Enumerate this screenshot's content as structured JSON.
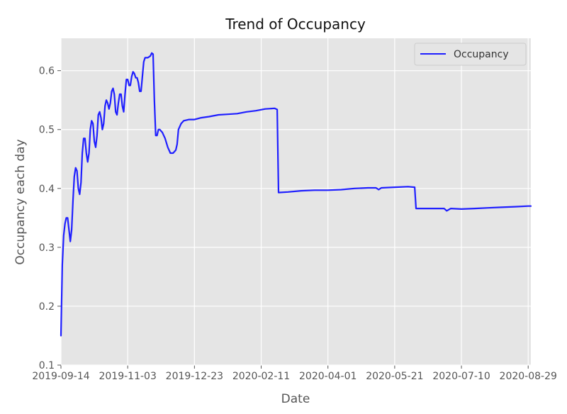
{
  "chart_data": {
    "type": "line",
    "title": "Trend of Occupancy",
    "xlabel": "Date",
    "ylabel": "Occupancy each day",
    "x_ticks": [
      "2019-09-14",
      "2019-11-03",
      "2019-12-23",
      "2020-02-11",
      "2020-04-01",
      "2020-05-21",
      "2020-07-10",
      "2020-08-29"
    ],
    "y_ticks": [
      "0.1",
      "0.2",
      "0.3",
      "0.4",
      "0.5",
      "0.6"
    ],
    "xlim": [
      "2019-09-14",
      "2020-08-31"
    ],
    "ylim": [
      0.1,
      0.655
    ],
    "grid": true,
    "legend_position": "upper right",
    "colors": {
      "background": "#e5e5e5",
      "grid": "#ffffff",
      "line": "#1f1fff"
    },
    "series": [
      {
        "name": "Occupancy",
        "points": [
          [
            "2019-09-14",
            0.15
          ],
          [
            "2019-09-15",
            0.27
          ],
          [
            "2019-09-16",
            0.32
          ],
          [
            "2019-09-17",
            0.34
          ],
          [
            "2019-09-18",
            0.35
          ],
          [
            "2019-09-19",
            0.35
          ],
          [
            "2019-09-20",
            0.33
          ],
          [
            "2019-09-21",
            0.31
          ],
          [
            "2019-09-22",
            0.33
          ],
          [
            "2019-09-23",
            0.38
          ],
          [
            "2019-09-24",
            0.42
          ],
          [
            "2019-09-25",
            0.435
          ],
          [
            "2019-09-26",
            0.43
          ],
          [
            "2019-09-27",
            0.4
          ],
          [
            "2019-09-28",
            0.39
          ],
          [
            "2019-09-29",
            0.41
          ],
          [
            "2019-09-30",
            0.46
          ],
          [
            "2019-10-01",
            0.485
          ],
          [
            "2019-10-02",
            0.485
          ],
          [
            "2019-10-03",
            0.46
          ],
          [
            "2019-10-04",
            0.445
          ],
          [
            "2019-10-05",
            0.46
          ],
          [
            "2019-10-06",
            0.5
          ],
          [
            "2019-10-07",
            0.515
          ],
          [
            "2019-10-08",
            0.51
          ],
          [
            "2019-10-09",
            0.48
          ],
          [
            "2019-10-10",
            0.47
          ],
          [
            "2019-10-11",
            0.49
          ],
          [
            "2019-10-12",
            0.525
          ],
          [
            "2019-10-13",
            0.53
          ],
          [
            "2019-10-14",
            0.52
          ],
          [
            "2019-10-15",
            0.5
          ],
          [
            "2019-10-16",
            0.51
          ],
          [
            "2019-10-17",
            0.54
          ],
          [
            "2019-10-18",
            0.55
          ],
          [
            "2019-10-19",
            0.545
          ],
          [
            "2019-10-20",
            0.535
          ],
          [
            "2019-10-21",
            0.545
          ],
          [
            "2019-10-22",
            0.565
          ],
          [
            "2019-10-23",
            0.57
          ],
          [
            "2019-10-24",
            0.56
          ],
          [
            "2019-10-25",
            0.53
          ],
          [
            "2019-10-26",
            0.525
          ],
          [
            "2019-10-27",
            0.545
          ],
          [
            "2019-10-28",
            0.56
          ],
          [
            "2019-10-29",
            0.56
          ],
          [
            "2019-10-30",
            0.54
          ],
          [
            "2019-10-31",
            0.53
          ],
          [
            "2019-11-01",
            0.56
          ],
          [
            "2019-11-02",
            0.585
          ],
          [
            "2019-11-03",
            0.585
          ],
          [
            "2019-11-04",
            0.575
          ],
          [
            "2019-11-05",
            0.575
          ],
          [
            "2019-11-06",
            0.59
          ],
          [
            "2019-11-07",
            0.598
          ],
          [
            "2019-11-08",
            0.595
          ],
          [
            "2019-11-09",
            0.588
          ],
          [
            "2019-11-10",
            0.588
          ],
          [
            "2019-11-11",
            0.58
          ],
          [
            "2019-11-12",
            0.565
          ],
          [
            "2019-11-13",
            0.565
          ],
          [
            "2019-11-14",
            0.59
          ],
          [
            "2019-11-15",
            0.615
          ],
          [
            "2019-11-16",
            0.622
          ],
          [
            "2019-11-17",
            0.622
          ],
          [
            "2019-11-18",
            0.622
          ],
          [
            "2019-11-20",
            0.625
          ],
          [
            "2019-11-21",
            0.63
          ],
          [
            "2019-11-22",
            0.628
          ],
          [
            "2019-11-23",
            0.55
          ],
          [
            "2019-11-24",
            0.49
          ],
          [
            "2019-11-25",
            0.49
          ],
          [
            "2019-11-26",
            0.5
          ],
          [
            "2019-11-27",
            0.5
          ],
          [
            "2019-11-29",
            0.495
          ],
          [
            "2019-12-01",
            0.485
          ],
          [
            "2019-12-03",
            0.47
          ],
          [
            "2019-12-05",
            0.46
          ],
          [
            "2019-12-07",
            0.46
          ],
          [
            "2019-12-09",
            0.465
          ],
          [
            "2019-12-10",
            0.475
          ],
          [
            "2019-12-11",
            0.5
          ],
          [
            "2019-12-13",
            0.51
          ],
          [
            "2019-12-15",
            0.515
          ],
          [
            "2019-12-19",
            0.517
          ],
          [
            "2019-12-23",
            0.517
          ],
          [
            "2019-12-28",
            0.52
          ],
          [
            "2020-01-03",
            0.522
          ],
          [
            "2020-01-10",
            0.525
          ],
          [
            "2020-01-17",
            0.526
          ],
          [
            "2020-01-24",
            0.527
          ],
          [
            "2020-01-31",
            0.53
          ],
          [
            "2020-02-07",
            0.532
          ],
          [
            "2020-02-14",
            0.535
          ],
          [
            "2020-02-21",
            0.536
          ],
          [
            "2020-02-23",
            0.534
          ],
          [
            "2020-02-24",
            0.393
          ],
          [
            "2020-03-02",
            0.394
          ],
          [
            "2020-03-12",
            0.396
          ],
          [
            "2020-03-22",
            0.397
          ],
          [
            "2020-04-01",
            0.397
          ],
          [
            "2020-04-11",
            0.398
          ],
          [
            "2020-04-21",
            0.4
          ],
          [
            "2020-05-01",
            0.401
          ],
          [
            "2020-05-07",
            0.401
          ],
          [
            "2020-05-09",
            0.398
          ],
          [
            "2020-05-11",
            0.401
          ],
          [
            "2020-05-21",
            0.402
          ],
          [
            "2020-05-31",
            0.403
          ],
          [
            "2020-06-05",
            0.402
          ],
          [
            "2020-06-06",
            0.366
          ],
          [
            "2020-06-12",
            0.366
          ],
          [
            "2020-06-22",
            0.366
          ],
          [
            "2020-06-27",
            0.366
          ],
          [
            "2020-06-29",
            0.362
          ],
          [
            "2020-07-02",
            0.366
          ],
          [
            "2020-07-10",
            0.365
          ],
          [
            "2020-07-20",
            0.366
          ],
          [
            "2020-07-30",
            0.367
          ],
          [
            "2020-08-09",
            0.368
          ],
          [
            "2020-08-19",
            0.369
          ],
          [
            "2020-08-29",
            0.37
          ],
          [
            "2020-08-31",
            0.37
          ]
        ]
      }
    ]
  }
}
